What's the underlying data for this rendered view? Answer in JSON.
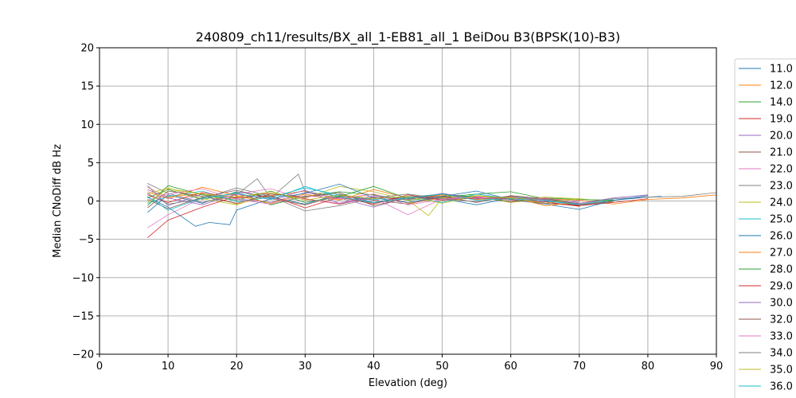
{
  "chart_data": {
    "type": "line",
    "title": "240809_ch11/results/BX_all_1-EB81_all_1 BeiDou B3(BPSK(10)-B3)",
    "xlabel": "Elevation (deg)",
    "ylabel": "Median CNoDiff dB Hz",
    "xlim": [
      0,
      90
    ],
    "ylim": [
      -20,
      20
    ],
    "xticks": [
      "0",
      "10",
      "20",
      "30",
      "40",
      "50",
      "60",
      "70",
      "80",
      "90"
    ],
    "yticks": [
      "20",
      "15",
      "10",
      "5",
      "0",
      "−5",
      "−10",
      "−15",
      "−20"
    ],
    "grid": true,
    "legend_position": "right, outside plot, clipped at bottom",
    "series": [
      {
        "name": "11.0",
        "color": "#1f77b4",
        "x": [
          7,
          10,
          15,
          20,
          25,
          30,
          35,
          40,
          45,
          50,
          55,
          60,
          65,
          70,
          75,
          80,
          82
        ],
        "y": [
          -1.5,
          0.8,
          -0.3,
          1.2,
          0.5,
          -0.4,
          0.9,
          -0.2,
          0.6,
          0.3,
          -0.5,
          0.4,
          0.2,
          -0.6,
          0.1,
          0.5,
          0.6
        ]
      },
      {
        "name": "12.0",
        "color": "#ff7f0e",
        "x": [
          7,
          10,
          15,
          20,
          25,
          30,
          35,
          40,
          45,
          50,
          55,
          60,
          65,
          70,
          75,
          80,
          85,
          90
        ],
        "y": [
          1.8,
          0.5,
          1.0,
          -0.4,
          0.7,
          1.3,
          0.2,
          0.9,
          -0.3,
          0.4,
          0.6,
          -0.2,
          0.3,
          0.1,
          -0.4,
          0.2,
          0.4,
          0.8
        ]
      },
      {
        "name": "14.0",
        "color": "#2ca02c",
        "x": [
          7,
          10,
          15,
          20,
          25,
          30,
          35,
          40,
          45,
          50,
          55,
          60,
          65,
          70
        ],
        "y": [
          0.4,
          1.5,
          0.2,
          1.1,
          -0.5,
          0.6,
          1.2,
          0.8,
          0.1,
          0.5,
          0.9,
          1.2,
          0.3,
          -0.2
        ]
      },
      {
        "name": "19.0",
        "color": "#d62728",
        "x": [
          7,
          10,
          15,
          20,
          25,
          30,
          35,
          40,
          45,
          50,
          55,
          60,
          65,
          70,
          75,
          80
        ],
        "y": [
          -4.8,
          -2.5,
          -0.8,
          0.6,
          1.0,
          0.3,
          -0.4,
          0.5,
          0.2,
          0.8,
          0.4,
          0.1,
          -0.3,
          -0.6,
          -0.2,
          0.3
        ]
      },
      {
        "name": "20.0",
        "color": "#9467bd",
        "x": [
          7,
          10,
          15,
          20,
          25,
          30,
          35,
          40,
          45,
          50,
          55,
          60,
          65,
          70
        ],
        "y": [
          2.0,
          -0.6,
          0.9,
          0.3,
          -0.2,
          1.1,
          0.4,
          -0.8,
          0.5,
          0.2,
          0.7,
          0.4,
          -0.1,
          0.0
        ]
      },
      {
        "name": "21.0",
        "color": "#8c564b",
        "x": [
          7,
          10,
          15,
          20,
          25,
          30,
          35,
          40,
          45,
          50,
          55,
          60,
          65,
          70,
          75
        ],
        "y": [
          0.2,
          -1.0,
          0.5,
          1.4,
          0.3,
          -0.5,
          0.7,
          0.1,
          -0.4,
          0.6,
          0.2,
          0.5,
          -0.3,
          -0.5,
          -0.1
        ]
      },
      {
        "name": "22.0",
        "color": "#e377c2",
        "x": [
          7,
          10,
          15,
          20,
          25,
          30,
          35,
          40,
          45,
          50,
          55,
          60,
          65
        ],
        "y": [
          -3.5,
          -1.8,
          0.4,
          0.9,
          1.6,
          0.2,
          -0.3,
          0.4,
          -1.8,
          0.3,
          0.6,
          0.2,
          -0.2
        ]
      },
      {
        "name": "23.0",
        "color": "#7f7f7f",
        "x": [
          7,
          10,
          15,
          20,
          23,
          25,
          29,
          30,
          35,
          40,
          45,
          50,
          55,
          60,
          65,
          70,
          75,
          80,
          85,
          90
        ],
        "y": [
          2.3,
          1.0,
          -0.2,
          0.8,
          2.9,
          0.4,
          3.5,
          1.2,
          0.6,
          -0.3,
          0.5,
          0.9,
          0.2,
          0.6,
          0.1,
          -0.4,
          0.3,
          0.5,
          0.6,
          1.1
        ]
      },
      {
        "name": "24.0",
        "color": "#bcbd22",
        "x": [
          7,
          10,
          15,
          20,
          25,
          30,
          35,
          40,
          45,
          48,
          50,
          55,
          60,
          65,
          70,
          75
        ],
        "y": [
          0.9,
          1.7,
          0.3,
          -0.5,
          1.0,
          0.4,
          1.9,
          1.2,
          0.1,
          -1.9,
          0.4,
          0.7,
          0.2,
          0.5,
          0.3,
          -0.1
        ]
      },
      {
        "name": "25.0",
        "color": "#17becf",
        "x": [
          7,
          10,
          15,
          20,
          25,
          30,
          35,
          40,
          45,
          50,
          55,
          60,
          65,
          70,
          75
        ],
        "y": [
          -0.3,
          0.6,
          1.3,
          -0.1,
          0.5,
          1.7,
          0.8,
          0.2,
          0.6,
          -0.2,
          0.9,
          0.3,
          0.0,
          -0.5,
          0.2
        ]
      },
      {
        "name": "26.0",
        "color": "#1f77b4",
        "x": [
          7,
          10,
          14,
          16,
          19,
          20,
          25,
          30,
          35,
          40,
          45,
          50,
          55,
          60,
          65,
          70,
          75,
          80
        ],
        "y": [
          0.5,
          -0.8,
          -3.3,
          -2.8,
          -3.1,
          -1.2,
          0.3,
          1.0,
          2.2,
          0.4,
          -0.2,
          0.6,
          1.3,
          0.2,
          -0.4,
          -1.1,
          0.1,
          0.7
        ]
      },
      {
        "name": "27.0",
        "color": "#ff7f0e",
        "x": [
          7,
          10,
          15,
          20,
          25,
          30,
          35,
          40,
          45,
          50,
          55,
          60,
          65,
          70
        ],
        "y": [
          1.2,
          0.3,
          1.8,
          0.7,
          -0.3,
          0.9,
          0.1,
          1.5,
          0.4,
          0.8,
          0.2,
          0.5,
          -0.6,
          -0.2
        ]
      },
      {
        "name": "28.0",
        "color": "#2ca02c",
        "x": [
          7,
          10,
          15,
          20,
          25,
          30,
          35,
          40,
          45,
          50,
          55,
          60,
          65,
          70,
          75
        ],
        "y": [
          -0.6,
          2.0,
          0.8,
          0.1,
          1.3,
          -0.2,
          0.6,
          1.9,
          0.3,
          0.9,
          0.5,
          -0.1,
          0.4,
          0.2,
          0.1
        ]
      },
      {
        "name": "29.0",
        "color": "#d62728",
        "x": [
          7,
          10,
          15,
          20,
          25,
          30,
          35,
          40,
          45,
          50,
          55,
          60,
          65,
          70
        ],
        "y": [
          0.8,
          -0.2,
          1.1,
          0.4,
          0.7,
          -0.9,
          0.5,
          -0.4,
          0.8,
          0.1,
          0.4,
          0.3,
          -0.1,
          -0.7
        ]
      },
      {
        "name": "30.0",
        "color": "#9467bd",
        "x": [
          7,
          10,
          15,
          20,
          25,
          30,
          35,
          40,
          45,
          50,
          55,
          60,
          65,
          70,
          75,
          80
        ],
        "y": [
          1.5,
          0.4,
          -0.5,
          0.9,
          0.2,
          1.4,
          -0.3,
          0.7,
          0.2,
          1.0,
          0.3,
          0.6,
          0.1,
          -0.3,
          0.4,
          0.8
        ]
      },
      {
        "name": "32.0",
        "color": "#8c564b",
        "x": [
          7,
          10,
          15,
          20,
          25,
          30,
          35,
          40,
          45,
          50,
          55,
          60,
          65,
          70
        ],
        "y": [
          -0.9,
          1.3,
          0.6,
          -0.3,
          0.9,
          0.5,
          1.1,
          -0.6,
          0.4,
          0.6,
          -0.2,
          0.7,
          0.3,
          -0.4
        ]
      },
      {
        "name": "33.0",
        "color": "#e377c2",
        "x": [
          7,
          10,
          15,
          20,
          25,
          30,
          35,
          40,
          45,
          50,
          55,
          60,
          65,
          70
        ],
        "y": [
          0.1,
          0.9,
          1.6,
          0.2,
          -0.4,
          0.7,
          0.3,
          0.9,
          -0.5,
          0.2,
          0.5,
          0.1,
          0.4,
          -0.2
        ]
      },
      {
        "name": "34.0",
        "color": "#7f7f7f",
        "x": [
          7,
          10,
          15,
          20,
          25,
          30,
          35,
          40,
          45,
          50,
          55,
          60,
          65,
          70,
          75
        ],
        "y": [
          1.0,
          -0.4,
          0.3,
          1.7,
          0.6,
          -1.3,
          -0.6,
          0.4,
          0.9,
          0.3,
          -0.1,
          0.6,
          0.2,
          -0.5,
          0.0
        ]
      },
      {
        "name": "35.0",
        "color": "#bcbd22",
        "x": [
          7,
          10,
          15,
          20,
          25,
          30,
          35,
          40,
          45,
          50,
          55,
          60,
          65,
          70
        ],
        "y": [
          -0.2,
          1.6,
          0.9,
          0.5,
          1.2,
          0.1,
          0.8,
          0.3,
          0.6,
          -0.3,
          0.7,
          0.4,
          -0.3,
          0.3
        ]
      },
      {
        "name": "36.0",
        "color": "#17becf",
        "x": [
          7,
          10,
          15,
          20,
          25,
          30,
          35,
          40,
          45,
          50,
          55,
          60,
          65,
          70
        ],
        "y": [
          0.6,
          -1.2,
          0.4,
          1.0,
          0.2,
          1.9,
          0.5,
          -0.2,
          0.4,
          0.9,
          0.1,
          0.3,
          0.0,
          -0.4
        ]
      }
    ]
  }
}
